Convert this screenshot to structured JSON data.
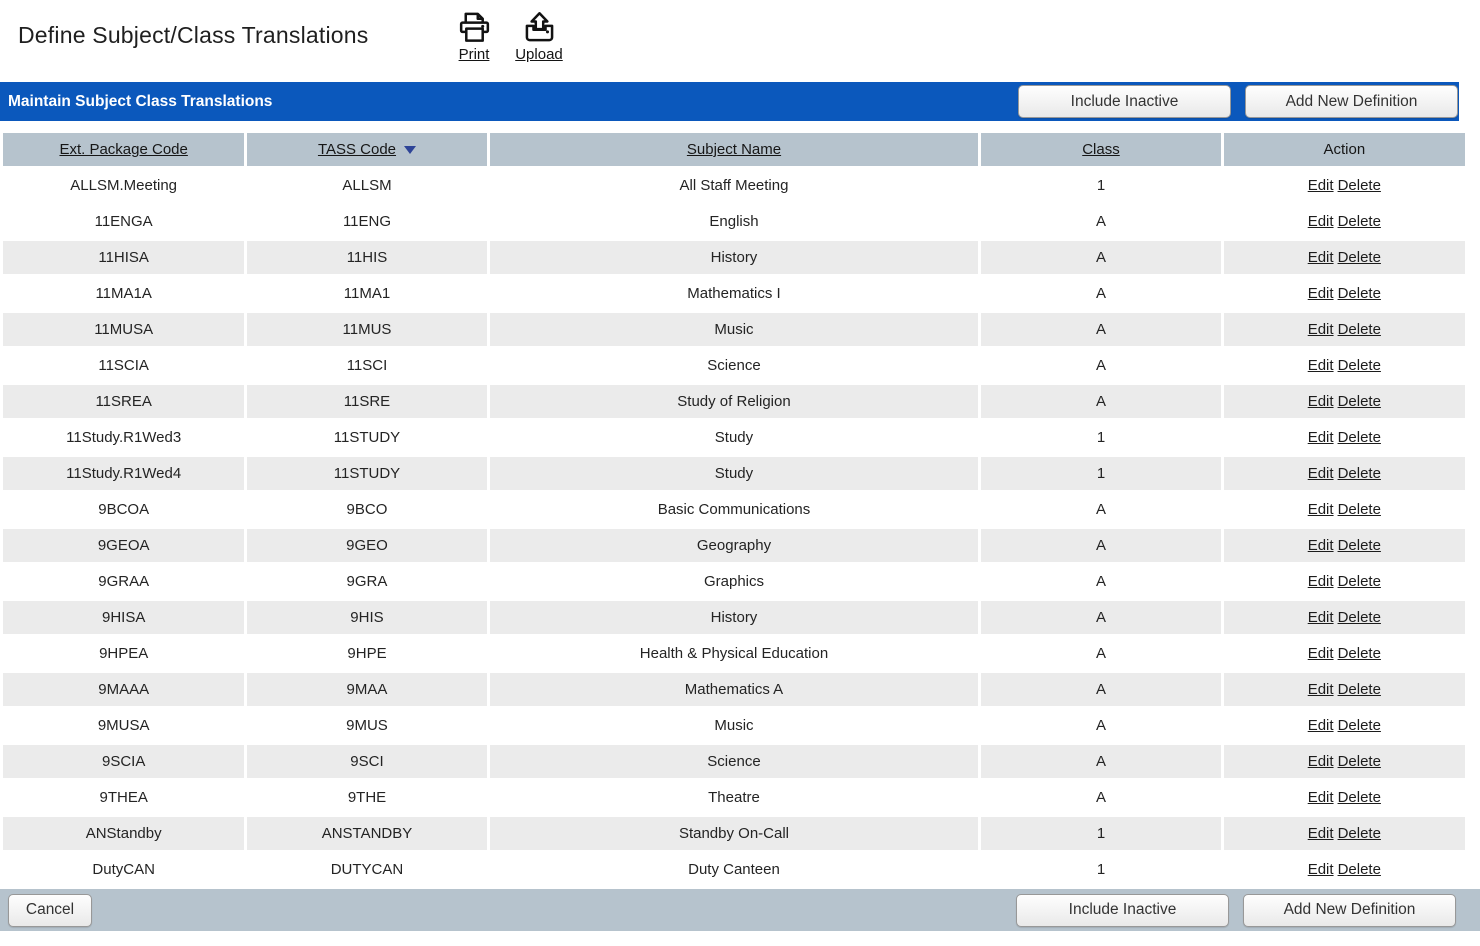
{
  "page": {
    "title": "Define Subject/Class Translations"
  },
  "toolbar": {
    "print_label": "Print",
    "upload_label": "Upload"
  },
  "panel": {
    "title": "Maintain Subject Class Translations",
    "include_inactive_label": "Include Inactive",
    "add_new_definition_label": "Add New Definition",
    "cancel_label": "Cancel"
  },
  "table": {
    "columns": [
      {
        "label": "Ext. Package Code",
        "sortable": true
      },
      {
        "label": "TASS Code",
        "sortable": true,
        "sorted": "desc"
      },
      {
        "label": "Subject Name",
        "sortable": true
      },
      {
        "label": "Class",
        "sortable": true
      },
      {
        "label": "Action",
        "sortable": false
      }
    ],
    "action_labels": {
      "edit": "Edit",
      "delete": "Delete"
    },
    "rows": [
      {
        "ext_package_code": "ALLSM.Meeting",
        "tass_code": "ALLSM",
        "subject_name": "All Staff Meeting",
        "class": "1"
      },
      {
        "ext_package_code": "11ENGA",
        "tass_code": "11ENG",
        "subject_name": "English",
        "class": "A"
      },
      {
        "ext_package_code": "11HISA",
        "tass_code": "11HIS",
        "subject_name": "History",
        "class": "A"
      },
      {
        "ext_package_code": "11MA1A",
        "tass_code": "11MA1",
        "subject_name": "Mathematics I",
        "class": "A"
      },
      {
        "ext_package_code": "11MUSA",
        "tass_code": "11MUS",
        "subject_name": "Music",
        "class": "A"
      },
      {
        "ext_package_code": "11SCIA",
        "tass_code": "11SCI",
        "subject_name": "Science",
        "class": "A"
      },
      {
        "ext_package_code": "11SREA",
        "tass_code": "11SRE",
        "subject_name": "Study of Religion",
        "class": "A"
      },
      {
        "ext_package_code": "11Study.R1Wed3",
        "tass_code": "11STUDY",
        "subject_name": "Study",
        "class": "1"
      },
      {
        "ext_package_code": "11Study.R1Wed4",
        "tass_code": "11STUDY",
        "subject_name": "Study",
        "class": "1"
      },
      {
        "ext_package_code": "9BCOA",
        "tass_code": "9BCO",
        "subject_name": "Basic Communications",
        "class": "A"
      },
      {
        "ext_package_code": "9GEOA",
        "tass_code": "9GEO",
        "subject_name": "Geography",
        "class": "A"
      },
      {
        "ext_package_code": "9GRAA",
        "tass_code": "9GRA",
        "subject_name": "Graphics",
        "class": "A"
      },
      {
        "ext_package_code": "9HISA",
        "tass_code": "9HIS",
        "subject_name": "History",
        "class": "A"
      },
      {
        "ext_package_code": "9HPEA",
        "tass_code": "9HPE",
        "subject_name": "Health & Physical Education",
        "class": "A"
      },
      {
        "ext_package_code": "9MAAA",
        "tass_code": "9MAA",
        "subject_name": "Mathematics A",
        "class": "A"
      },
      {
        "ext_package_code": "9MUSA",
        "tass_code": "9MUS",
        "subject_name": "Music",
        "class": "A"
      },
      {
        "ext_package_code": "9SCIA",
        "tass_code": "9SCI",
        "subject_name": "Science",
        "class": "A"
      },
      {
        "ext_package_code": "9THEA",
        "tass_code": "9THE",
        "subject_name": "Theatre",
        "class": "A"
      },
      {
        "ext_package_code": "ANStandby",
        "tass_code": "ANSTANDBY",
        "subject_name": "Standby On-Call",
        "class": "1"
      },
      {
        "ext_package_code": "DutyCAN",
        "tass_code": "DUTYCAN",
        "subject_name": "Duty Canteen",
        "class": "1"
      }
    ]
  },
  "colors": {
    "panel_blue": "#0b58bc",
    "bar_gray": "#b6c3cd",
    "row_stripe": "#ebebeb",
    "sort_arrow": "#2e4497"
  }
}
